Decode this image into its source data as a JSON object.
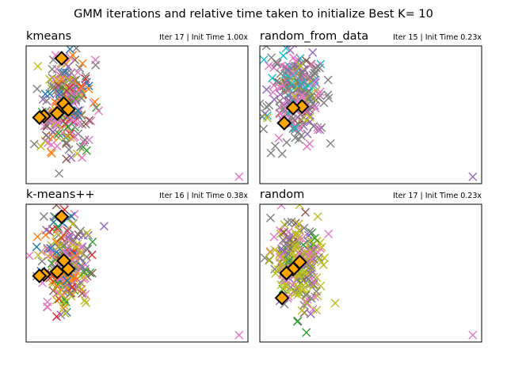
{
  "figure": {
    "title": "GMM iterations and relative time taken to initialize Best K= 10"
  },
  "chart_data": [
    {
      "type": "scatter",
      "title": "kmeans",
      "subtitle": "Iter 17 | Init Time 1.00x",
      "colors": [
        "#1f77b4",
        "#ff7f0e",
        "#2ca02c",
        "#d62728",
        "#9467bd",
        "#8c564b",
        "#e377c2",
        "#7f7f7f",
        "#bcbd22",
        "#17becf"
      ],
      "xlim": [
        0,
        10
      ],
      "ylim": [
        0,
        10
      ],
      "cloud": {
        "cx": 1.85,
        "cy": 5.7,
        "sx": 0.55,
        "sy": 1.65,
        "n": 260,
        "seed": 11,
        "weights": [
          1,
          1,
          1,
          1,
          1,
          1,
          3,
          3,
          3,
          0
        ]
      },
      "centers": [
        [
          1.6,
          9.1
        ],
        [
          1.7,
          5.8
        ],
        [
          1.9,
          5.4
        ],
        [
          1.4,
          5.1
        ],
        [
          0.8,
          4.9
        ],
        [
          0.6,
          4.8
        ]
      ],
      "outlier": {
        "x": 9.6,
        "y": 0.5,
        "color": "#e377c2"
      },
      "grid": false
    },
    {
      "type": "scatter",
      "title": "random_from_data",
      "subtitle": "Iter 15 | Init Time 0.23x",
      "colors": [
        "#1f77b4",
        "#ff7f0e",
        "#2ca02c",
        "#d62728",
        "#9467bd",
        "#8c564b",
        "#e377c2",
        "#7f7f7f",
        "#bcbd22",
        "#17becf"
      ],
      "xlim": [
        0,
        10
      ],
      "ylim": [
        0,
        10
      ],
      "cloud": {
        "cx": 1.65,
        "cy": 6.5,
        "sx": 0.6,
        "sy": 1.7,
        "n": 260,
        "seed": 23,
        "weights": [
          0,
          0,
          0,
          0,
          1,
          1,
          3,
          5,
          1,
          1
        ]
      },
      "centers": [
        [
          1.9,
          5.6
        ],
        [
          1.5,
          5.5
        ],
        [
          1.1,
          4.4
        ]
      ],
      "outlier": {
        "x": 9.6,
        "y": 0.5,
        "color": "#9467bd"
      },
      "grid": false
    },
    {
      "type": "scatter",
      "title": "k-means++",
      "subtitle": "Iter 16 | Init Time 0.38x",
      "colors": [
        "#1f77b4",
        "#ff7f0e",
        "#2ca02c",
        "#d62728",
        "#9467bd",
        "#8c564b",
        "#e377c2",
        "#7f7f7f",
        "#bcbd22",
        "#17becf"
      ],
      "xlim": [
        0,
        10
      ],
      "ylim": [
        0,
        10
      ],
      "cloud": {
        "cx": 1.85,
        "cy": 5.6,
        "sx": 0.55,
        "sy": 1.65,
        "n": 260,
        "seed": 37,
        "weights": [
          1,
          1,
          1,
          1,
          1,
          1,
          3,
          3,
          3,
          0
        ]
      },
      "centers": [
        [
          1.6,
          9.1
        ],
        [
          1.7,
          5.9
        ],
        [
          1.9,
          5.3
        ],
        [
          1.4,
          5.1
        ],
        [
          0.8,
          4.9
        ],
        [
          0.6,
          4.8
        ]
      ],
      "outlier": {
        "x": 9.6,
        "y": 0.5,
        "color": "#e377c2"
      },
      "grid": false
    },
    {
      "type": "scatter",
      "title": "random",
      "subtitle": "Iter 17 | Init Time 0.23x",
      "colors": [
        "#1f77b4",
        "#ff7f0e",
        "#2ca02c",
        "#d62728",
        "#9467bd",
        "#8c564b",
        "#e377c2",
        "#7f7f7f",
        "#bcbd22",
        "#17becf"
      ],
      "xlim": [
        0,
        10
      ],
      "ylim": [
        0,
        10
      ],
      "cloud": {
        "cx": 1.75,
        "cy": 5.8,
        "sx": 0.6,
        "sy": 1.7,
        "n": 260,
        "seed": 53,
        "weights": [
          0,
          0,
          1,
          0,
          1,
          1,
          3,
          3,
          5,
          0
        ]
      },
      "centers": [
        [
          1.8,
          5.8
        ],
        [
          1.5,
          5.3
        ],
        [
          1.2,
          5.0
        ],
        [
          1.0,
          3.2
        ]
      ],
      "outlier": {
        "x": 9.6,
        "y": 0.5,
        "color": "#e377c2"
      },
      "grid": false
    }
  ]
}
